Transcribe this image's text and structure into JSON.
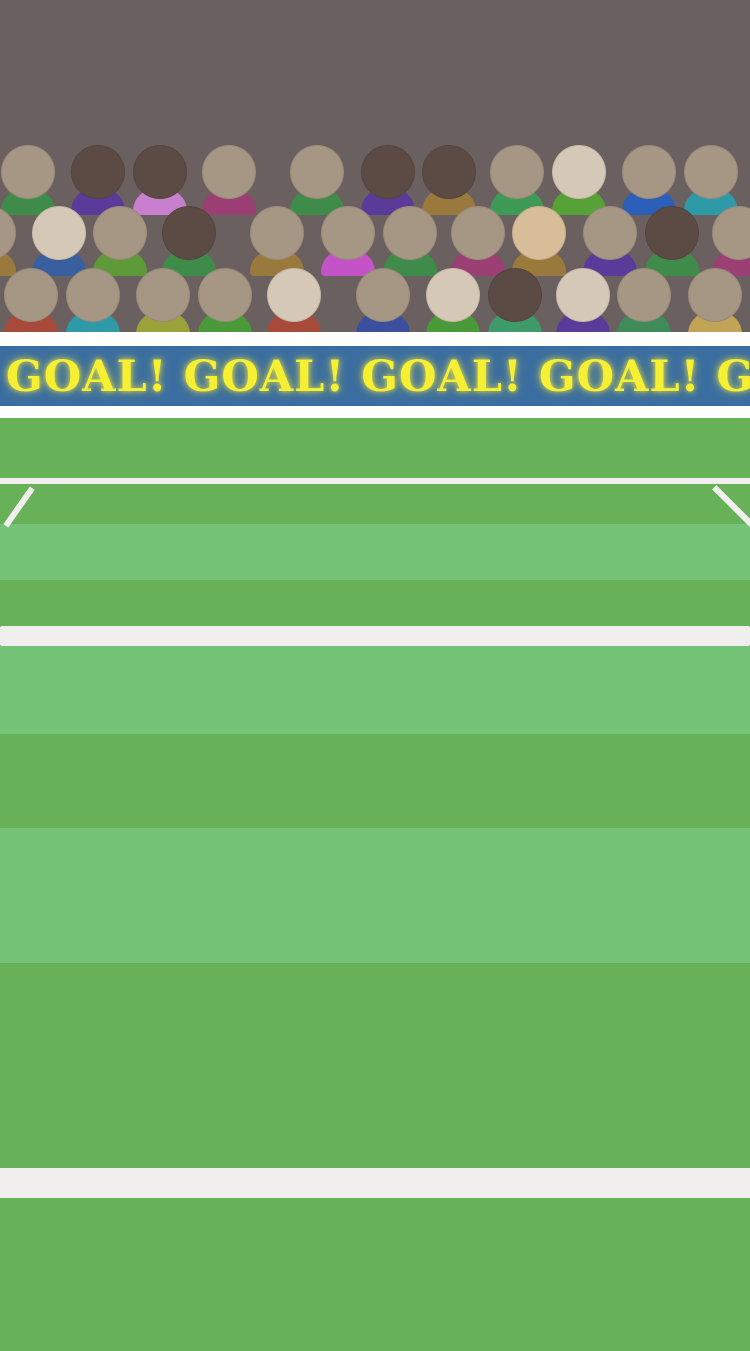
{
  "banner": {
    "text": "GOAL! GOAL! GOAL! GOAL! GOAL!",
    "text_color": "#f7f032",
    "background_color": "#3a6da1"
  },
  "colors": {
    "stands": "#6a605f",
    "grass_dark": "#67b158",
    "grass_light": "#75c377",
    "lines": "#f1efee",
    "rail": "#ffffff"
  }
}
